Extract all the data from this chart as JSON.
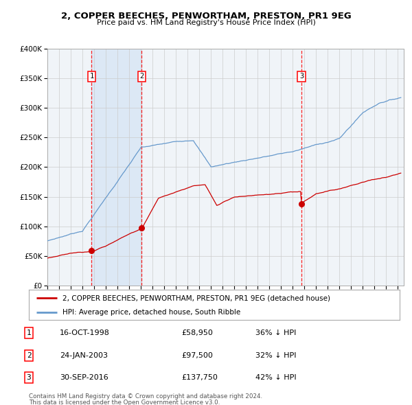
{
  "title": "2, COPPER BEECHES, PENWORTHAM, PRESTON, PR1 9EG",
  "subtitle": "Price paid vs. HM Land Registry's House Price Index (HPI)",
  "legend_red": "2, COPPER BEECHES, PENWORTHAM, PRESTON, PR1 9EG (detached house)",
  "legend_blue": "HPI: Average price, detached house, South Ribble",
  "footer1": "Contains HM Land Registry data © Crown copyright and database right 2024.",
  "footer2": "This data is licensed under the Open Government Licence v3.0.",
  "sale_points": [
    {
      "num": 1,
      "date": "16-OCT-1998",
      "price": 58950,
      "price_str": "£58,950",
      "pct": "36% ↓ HPI",
      "year": 1998.79
    },
    {
      "num": 2,
      "date": "24-JAN-2003",
      "price": 97500,
      "price_str": "£97,500",
      "pct": "32% ↓ HPI",
      "year": 2003.07
    },
    {
      "num": 3,
      "date": "30-SEP-2016",
      "price": 137750,
      "price_str": "£137,750",
      "pct": "42% ↓ HPI",
      "year": 2016.75
    }
  ],
  "ylim": [
    0,
    400000
  ],
  "xlim_start": 1995.0,
  "xlim_end": 2025.5,
  "grid_color": "#cccccc",
  "background_color": "#ffffff",
  "plot_bg_color": "#f0f4f8",
  "shade_color": "#dce8f5",
  "red_color": "#cc0000",
  "blue_color": "#6699cc",
  "sale_shade_regions": [
    [
      1998.79,
      2003.07
    ]
  ]
}
